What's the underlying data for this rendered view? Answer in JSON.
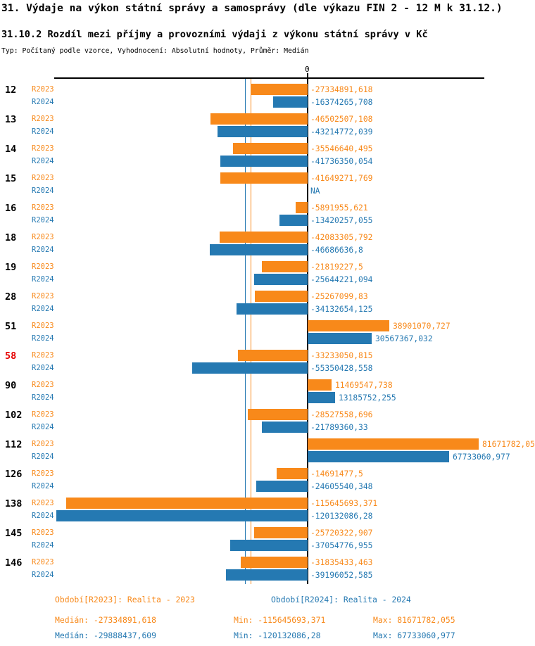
{
  "header": {
    "title": "31. Výdaje na výkon státní správy a samosprávy (dle výkazu FIN 2 - 12 M k 31.12.)",
    "subtitle": "31.10.2 Rozdíl mezi příjmy a provozními výdaji z výkonu státní správy v Kč",
    "meta": "Typ: Počítaný podle vzorce, Vyhodnocení: Absolutní hodnoty, Průměr: Medián"
  },
  "colors": {
    "r2023_orange": "#F8891A",
    "r2024_blue": "#2579B2",
    "highlight_red": "#E60000",
    "axis_black": "#000000"
  },
  "chart_data": {
    "type": "bar",
    "orientation": "horizontal",
    "unit": "Kč",
    "zero_tick_label": "0",
    "grid": false,
    "legend_position": "none",
    "axis": {
      "zero": 0,
      "min": -120132086.28,
      "max": 81671782.055
    },
    "series_meta": [
      {
        "key": "r2023",
        "name": "R2023",
        "color": "#F8891A"
      },
      {
        "key": "r2024",
        "name": "R2024",
        "color": "#2579B2"
      }
    ],
    "medians": {
      "r2023": -27334891.618,
      "r2024": -29888437.609
    },
    "categories": [
      {
        "id": "12",
        "highlight": false,
        "r2023": {
          "value": -27334891.618,
          "label": "-27334891,618"
        },
        "r2024": {
          "value": -16374265.708,
          "label": "-16374265,708"
        }
      },
      {
        "id": "13",
        "highlight": false,
        "r2023": {
          "value": -46502507.108,
          "label": "-46502507,108"
        },
        "r2024": {
          "value": -43214772.039,
          "label": "-43214772,039"
        }
      },
      {
        "id": "14",
        "highlight": false,
        "r2023": {
          "value": -35546640.495,
          "label": "-35546640,495"
        },
        "r2024": {
          "value": -41736350.054,
          "label": "-41736350,054"
        }
      },
      {
        "id": "15",
        "highlight": false,
        "r2023": {
          "value": -41649271.769,
          "label": "-41649271,769"
        },
        "r2024": {
          "value": null,
          "label": "NA"
        }
      },
      {
        "id": "16",
        "highlight": false,
        "r2023": {
          "value": -5891955.621,
          "label": "-5891955,621"
        },
        "r2024": {
          "value": -13420257.055,
          "label": "-13420257,055"
        }
      },
      {
        "id": "18",
        "highlight": false,
        "r2023": {
          "value": -42083305.792,
          "label": "-42083305,792"
        },
        "r2024": {
          "value": -46686636.8,
          "label": "-46686636,8"
        }
      },
      {
        "id": "19",
        "highlight": false,
        "r2023": {
          "value": -21819227.5,
          "label": "-21819227,5"
        },
        "r2024": {
          "value": -25644221.094,
          "label": "-25644221,094"
        }
      },
      {
        "id": "28",
        "highlight": false,
        "r2023": {
          "value": -25267099.83,
          "label": "-25267099,83"
        },
        "r2024": {
          "value": -34132654.125,
          "label": "-34132654,125"
        }
      },
      {
        "id": "51",
        "highlight": false,
        "r2023": {
          "value": 38901070.727,
          "label": "38901070,727"
        },
        "r2024": {
          "value": 30567367.032,
          "label": "30567367,032"
        }
      },
      {
        "id": "58",
        "highlight": true,
        "r2023": {
          "value": -33233050.815,
          "label": "-33233050,815"
        },
        "r2024": {
          "value": -55350428.558,
          "label": "-55350428,558"
        }
      },
      {
        "id": "90",
        "highlight": false,
        "r2023": {
          "value": 11469547.738,
          "label": "11469547,738"
        },
        "r2024": {
          "value": 13185752.255,
          "label": "13185752,255"
        }
      },
      {
        "id": "102",
        "highlight": false,
        "r2023": {
          "value": -28527558.696,
          "label": "-28527558,696"
        },
        "r2024": {
          "value": -21789360.33,
          "label": "-21789360,33"
        }
      },
      {
        "id": "112",
        "highlight": false,
        "r2023": {
          "value": 81671782.055,
          "label": "81671782,05"
        },
        "r2024": {
          "value": 67733060.977,
          "label": "67733060,977"
        }
      },
      {
        "id": "126",
        "highlight": false,
        "r2023": {
          "value": -14691477.5,
          "label": "-14691477,5"
        },
        "r2024": {
          "value": -24605540.348,
          "label": "-24605540,348"
        }
      },
      {
        "id": "138",
        "highlight": false,
        "r2023": {
          "value": -115645693.371,
          "label": "-115645693,371"
        },
        "r2024": {
          "value": -120132086.28,
          "label": "-120132086,28"
        }
      },
      {
        "id": "145",
        "highlight": false,
        "r2023": {
          "value": -25720322.907,
          "label": "-25720322,907"
        },
        "r2024": {
          "value": -37054776.955,
          "label": "-37054776,955"
        }
      },
      {
        "id": "146",
        "highlight": false,
        "r2023": {
          "value": -31835433.463,
          "label": "-31835433,463"
        },
        "r2024": {
          "value": -39196052.585,
          "label": "-39196052,585"
        }
      }
    ]
  },
  "footer": {
    "period_r2023": "Období[R2023]: Realita - 2023",
    "period_r2024": "Období[R2024]: Realita - 2024",
    "stats_r2023": {
      "median": "Medián: -27334891,618",
      "min": "Min: -115645693,371",
      "max": "Max: 81671782,055"
    },
    "stats_r2024": {
      "median": "Medián: -29888437,609",
      "min": "Min: -120132086,28",
      "max": "Max: 67733060,977"
    }
  }
}
